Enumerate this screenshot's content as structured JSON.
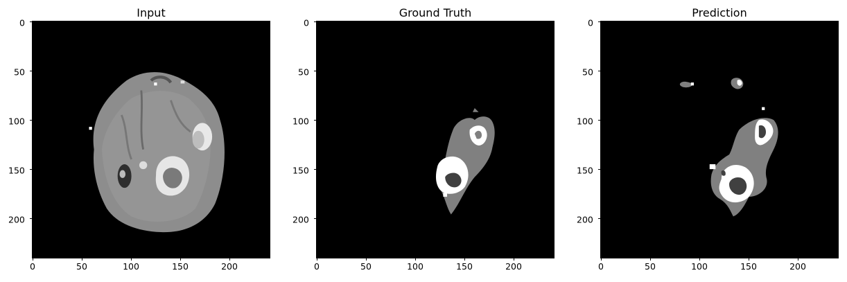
{
  "panels": [
    {
      "title": "Input"
    },
    {
      "title": "Ground Truth"
    },
    {
      "title": "Prediction"
    }
  ],
  "axis": {
    "x_range": [
      0,
      240
    ],
    "y_range": [
      0,
      240
    ],
    "x_ticks": [
      "0",
      "50",
      "100",
      "150",
      "200"
    ],
    "y_ticks": [
      "0",
      "50",
      "100",
      "150",
      "200"
    ],
    "x_tick_values": [
      0,
      50,
      100,
      150,
      200
    ],
    "y_tick_values": [
      0,
      50,
      100,
      150,
      200
    ]
  },
  "colors": {
    "background": "#000000",
    "brain": "#8a8a8a",
    "edema": "#808080",
    "enhancing": "#ffffff",
    "necrosis": "#404040",
    "label_text": "#000000"
  }
}
